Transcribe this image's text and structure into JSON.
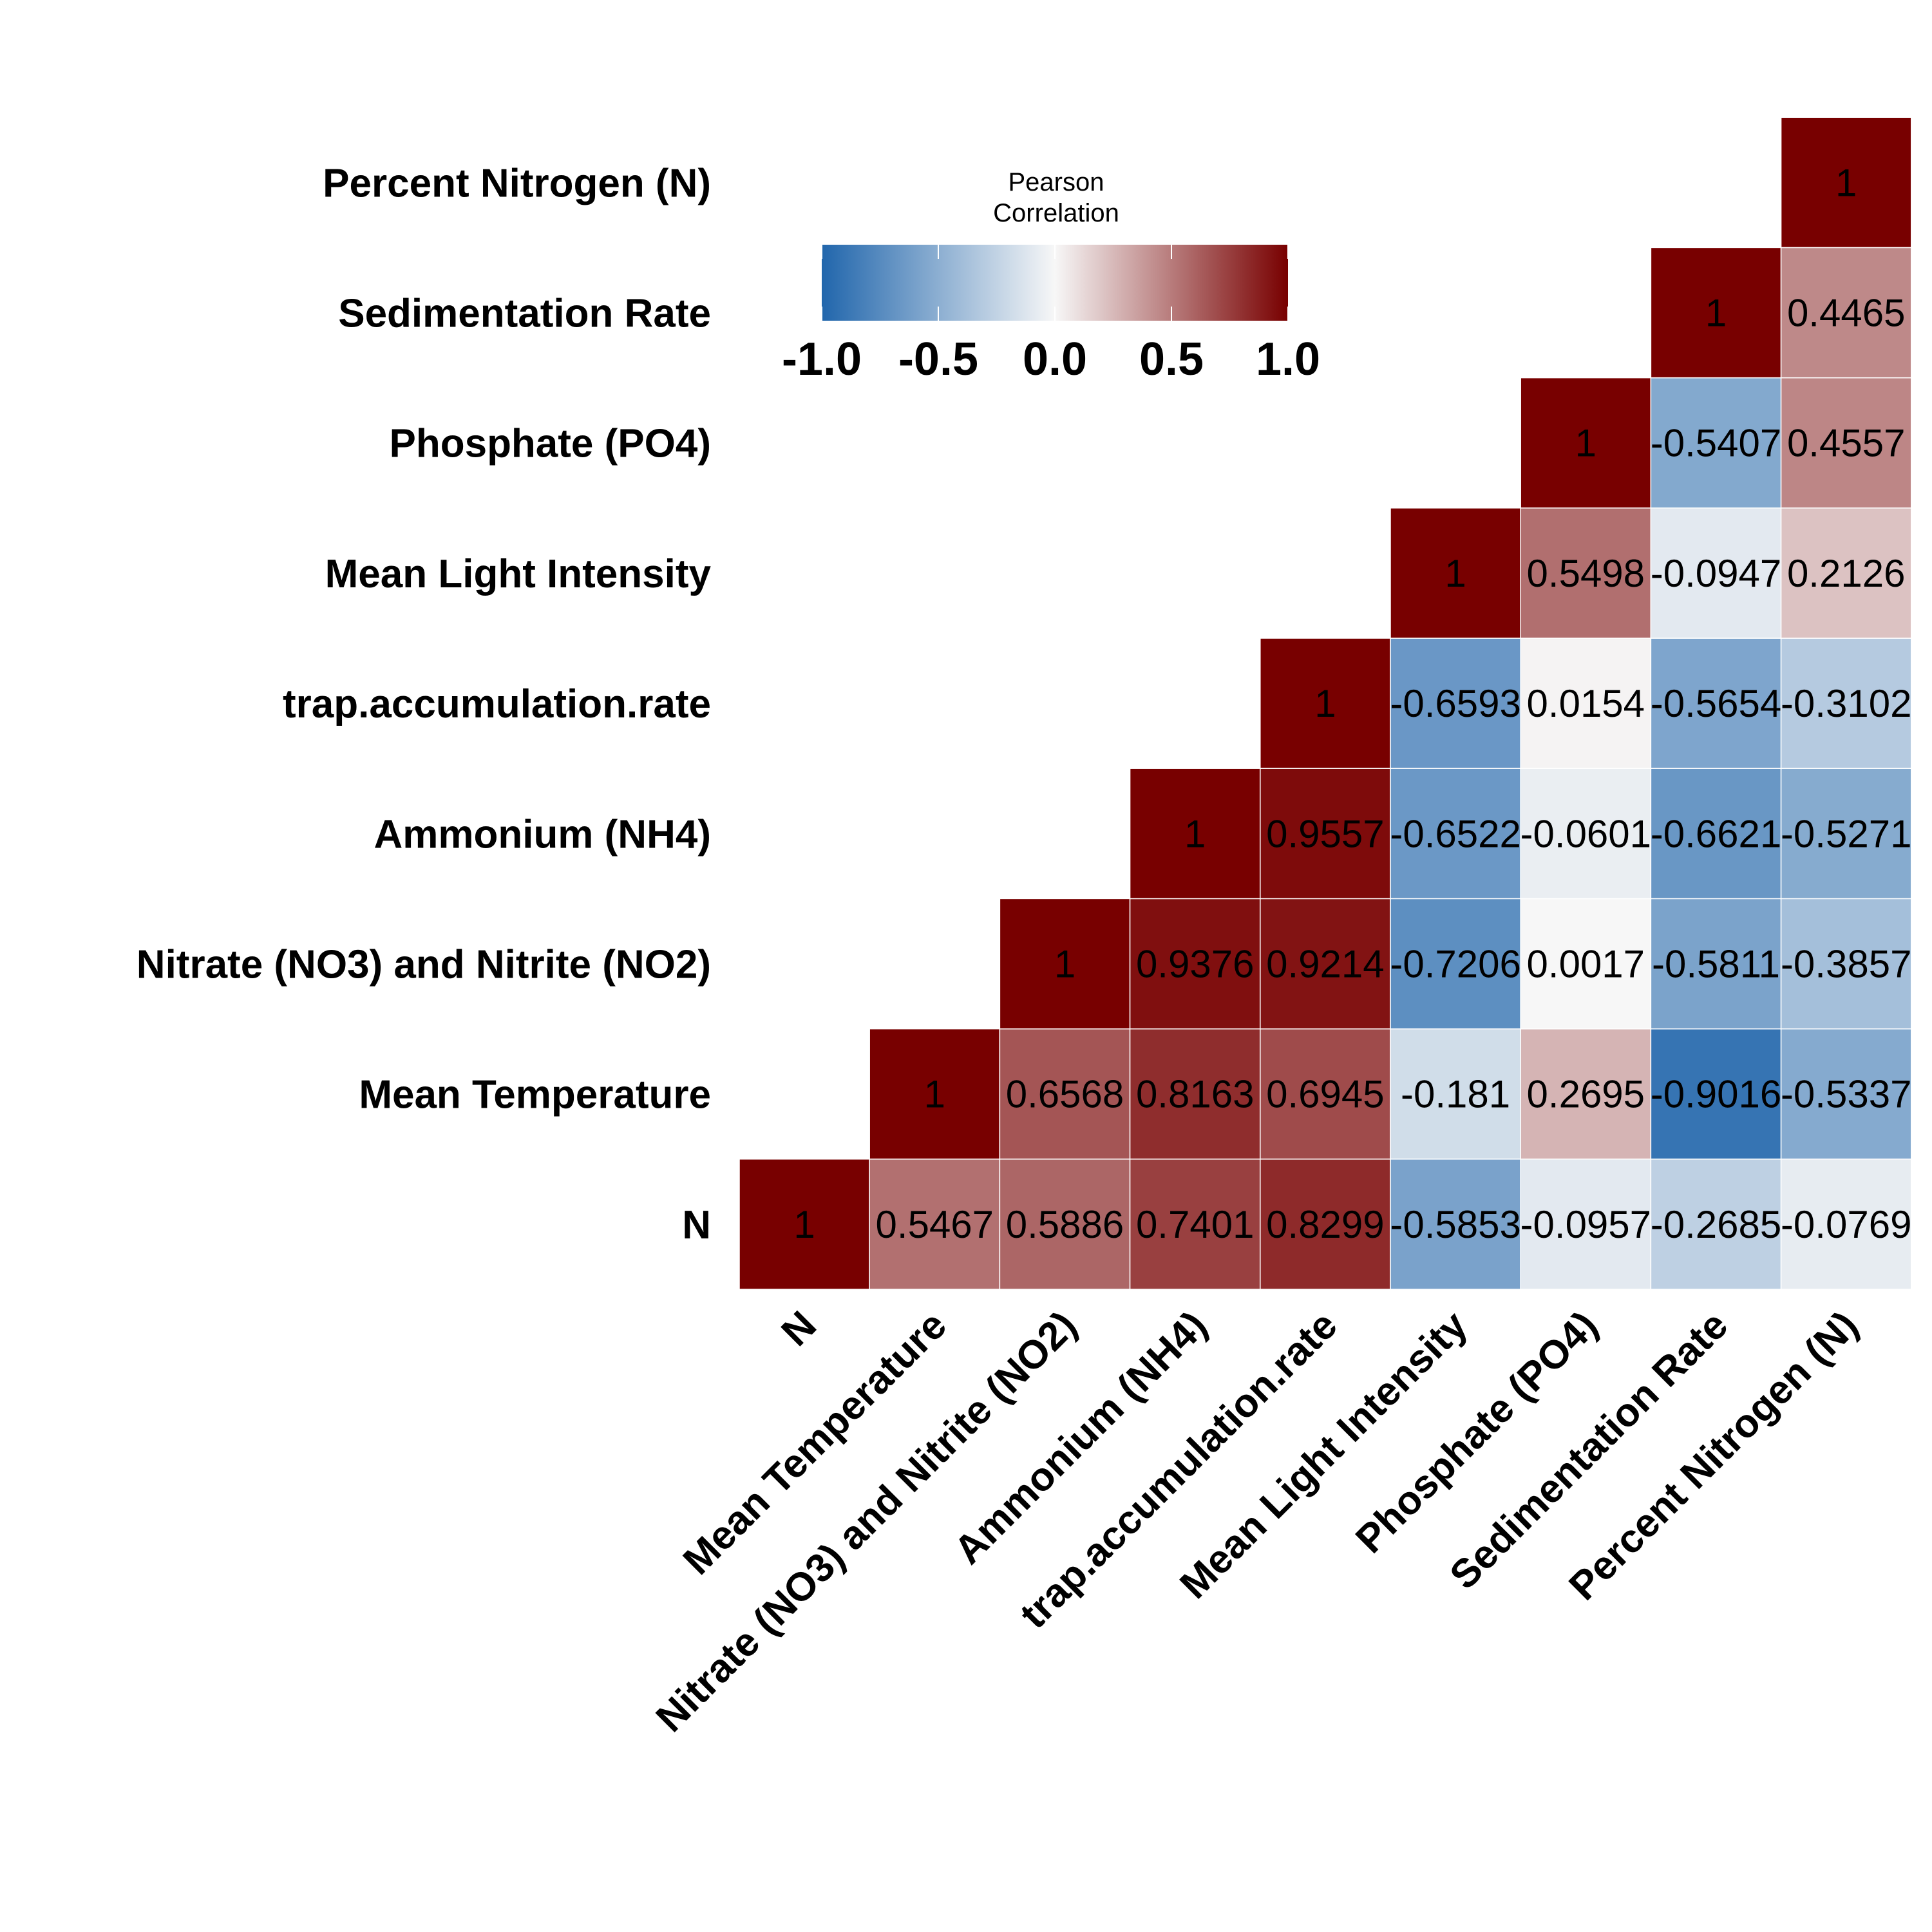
{
  "chart_data": {
    "type": "heatmap",
    "variables": [
      "N",
      "Mean Temperature",
      "Nitrate (NO3) and Nitrite (NO2)",
      "Ammonium (NH4)",
      "trap.accumulation.rate",
      "Mean Light Intensity",
      "Phosphate (PO4)",
      "Sedimentation Rate",
      "Percent Nitrogen (N)"
    ],
    "matrix_upper": [
      [
        1,
        0.5467,
        0.5886,
        0.7401,
        0.8299,
        -0.5853,
        -0.0957,
        -0.2685,
        -0.0769
      ],
      [
        null,
        1,
        0.6568,
        0.8163,
        0.6945,
        -0.181,
        0.2695,
        -0.9016,
        -0.5337
      ],
      [
        null,
        null,
        1,
        0.9376,
        0.9214,
        -0.7206,
        0.0017,
        -0.5811,
        -0.3857
      ],
      [
        null,
        null,
        null,
        1,
        0.9557,
        -0.6522,
        -0.0601,
        -0.6621,
        -0.5271
      ],
      [
        null,
        null,
        null,
        null,
        1,
        -0.6593,
        0.0154,
        -0.5654,
        -0.3102
      ],
      [
        null,
        null,
        null,
        null,
        null,
        1,
        0.5498,
        -0.0947,
        0.2126
      ],
      [
        null,
        null,
        null,
        null,
        null,
        null,
        1,
        -0.5407,
        0.4557
      ],
      [
        null,
        null,
        null,
        null,
        null,
        null,
        null,
        1,
        0.4465
      ],
      [
        null,
        null,
        null,
        null,
        null,
        null,
        null,
        null,
        1
      ]
    ],
    "value_labels": [
      [
        "1",
        "0.5467",
        "0.5886",
        "0.7401",
        "0.8299",
        "-0.5853",
        "-0.0957",
        "-0.2685",
        "-0.0769"
      ],
      [
        null,
        "1",
        "0.6568",
        "0.8163",
        "0.6945",
        "-0.181",
        "0.2695",
        "-0.9016",
        "-0.5337"
      ],
      [
        null,
        null,
        "1",
        "0.9376",
        "0.9214",
        "-0.7206",
        "0.0017",
        "-0.5811",
        "-0.3857"
      ],
      [
        null,
        null,
        null,
        "1",
        "0.9557",
        "-0.6522",
        "-0.0601",
        "-0.6621",
        "-0.5271"
      ],
      [
        null,
        null,
        null,
        null,
        "1",
        "-0.6593",
        "0.0154",
        "-0.5654",
        "-0.3102"
      ],
      [
        null,
        null,
        null,
        null,
        null,
        "1",
        "0.5498",
        "-0.0947",
        "0.2126"
      ],
      [
        null,
        null,
        null,
        null,
        null,
        null,
        "1",
        "-0.5407",
        "0.4557"
      ],
      [
        null,
        null,
        null,
        null,
        null,
        null,
        null,
        "1",
        "0.4465"
      ],
      [
        null,
        null,
        null,
        null,
        null,
        null,
        null,
        null,
        "1"
      ]
    ],
    "legend": {
      "title_lines": [
        "Pearson",
        "Correlation"
      ],
      "range": [
        -1,
        1
      ],
      "ticks": [
        -1.0,
        -0.5,
        0.0,
        0.5,
        1.0
      ],
      "tick_labels": [
        "-1.0",
        "-0.5",
        "0.0",
        "0.5",
        "1.0"
      ],
      "placement": "top-center"
    },
    "color_scale": {
      "low": "#2166AC",
      "mid": "#F7F7F7",
      "high": "#780000"
    },
    "grid_line_color": "#ffffff"
  }
}
